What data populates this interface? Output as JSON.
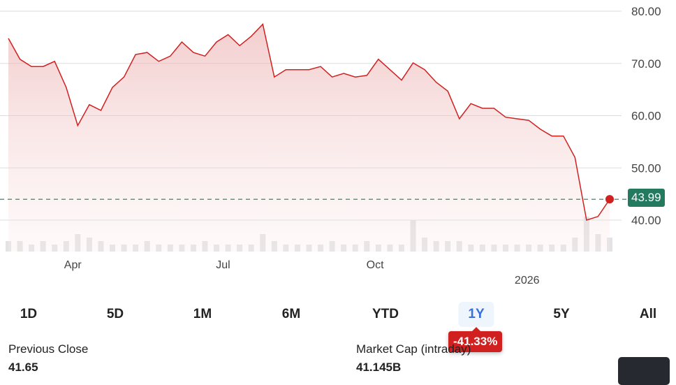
{
  "chart_data": {
    "type": "line",
    "dates": [
      "2025-02-21",
      "2025-02-28",
      "2025-03-07",
      "2025-03-14",
      "2025-03-21",
      "2025-03-28",
      "2025-04-04",
      "2025-04-11",
      "2025-04-18",
      "2025-04-25",
      "2025-05-02",
      "2025-05-09",
      "2025-05-16",
      "2025-05-23",
      "2025-05-30",
      "2025-06-06",
      "2025-06-13",
      "2025-06-20",
      "2025-06-27",
      "2025-07-04",
      "2025-07-11",
      "2025-07-18",
      "2025-07-25",
      "2025-08-01",
      "2025-08-08",
      "2025-08-15",
      "2025-08-22",
      "2025-08-29",
      "2025-09-05",
      "2025-09-12",
      "2025-09-19",
      "2025-09-26",
      "2025-10-03",
      "2025-10-10",
      "2025-10-17",
      "2025-10-24",
      "2025-10-31",
      "2025-11-07",
      "2025-11-14",
      "2025-11-21",
      "2025-11-28",
      "2025-12-05",
      "2025-12-12",
      "2025-12-19",
      "2025-12-26",
      "2026-01-02",
      "2026-01-09",
      "2026-01-16",
      "2026-01-23",
      "2026-01-30",
      "2026-02-06",
      "2026-02-13",
      "2026-02-20"
    ],
    "values": [
      74.8,
      70.8,
      69.4,
      69.4,
      70.4,
      65.4,
      58.1,
      62.1,
      61.0,
      65.4,
      67.4,
      71.7,
      72.1,
      70.4,
      71.4,
      74.1,
      72.1,
      71.4,
      74.1,
      75.5,
      73.4,
      75.2,
      77.5,
      67.4,
      68.8,
      68.8,
      68.8,
      69.4,
      67.4,
      68.1,
      67.4,
      67.7,
      70.8,
      68.8,
      66.8,
      70.1,
      68.8,
      66.4,
      64.7,
      59.4,
      62.3,
      61.4,
      61.4,
      59.7,
      59.4,
      59.1,
      57.4,
      56.1,
      56.1,
      52.0,
      40.0,
      40.7,
      43.99
    ],
    "volume": [
      3,
      3,
      2,
      3,
      2,
      3,
      5,
      4,
      3,
      2,
      2,
      2,
      3,
      2,
      2,
      2,
      2,
      3,
      2,
      2,
      2,
      2,
      5,
      3,
      2,
      2,
      2,
      2,
      3,
      2,
      2,
      3,
      2,
      2,
      2,
      9,
      4,
      3,
      3,
      3,
      2,
      2,
      2,
      2,
      2,
      2,
      2,
      2,
      2,
      4,
      10,
      5,
      4
    ],
    "ylim": [
      34,
      80
    ],
    "yticks": [
      "80.00",
      "70.00",
      "60.00",
      "50.00",
      "40.00"
    ],
    "xticks": [
      {
        "label": "Apr",
        "date": "2025-04-01"
      },
      {
        "label": "Jul",
        "date": "2025-07-01"
      },
      {
        "label": "Oct",
        "date": "2025-10-01"
      },
      {
        "label": "2026",
        "date": "2026-01-01"
      }
    ],
    "last_price": "43.99",
    "grid": true,
    "colors": {
      "line": "#d12020",
      "last": "#237a5e",
      "grid": "#dddddd"
    }
  },
  "ranges": [
    "1D",
    "5D",
    "1M",
    "6M",
    "YTD",
    "1Y",
    "5Y",
    "All"
  ],
  "active_range": "1Y",
  "change_badge": "-41.33%",
  "stats": {
    "prev_close_label": "Previous Close",
    "prev_close": "41.65",
    "market_cap_label": "Market Cap (intraday)",
    "market_cap": "41.145B"
  }
}
